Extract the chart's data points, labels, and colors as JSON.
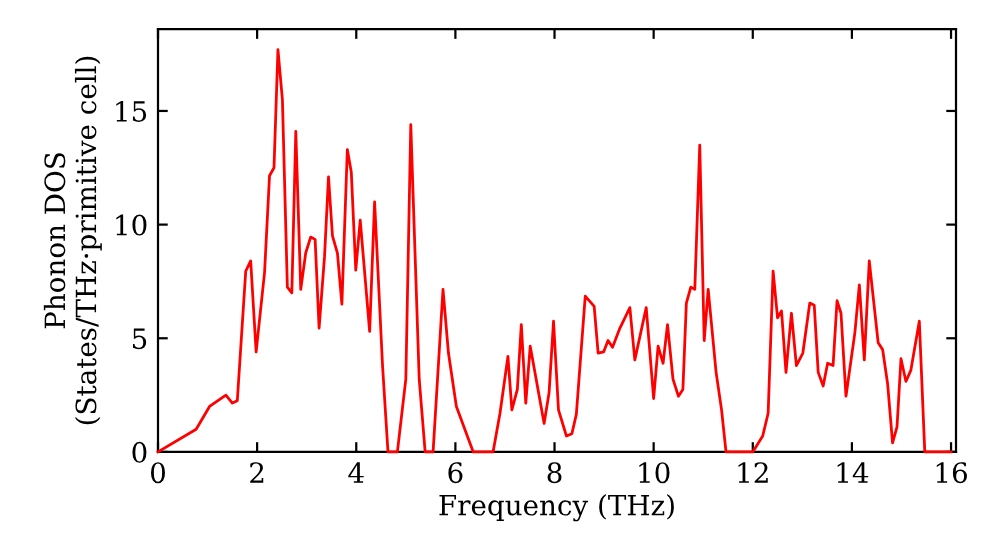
{
  "chart_data": {
    "type": "line",
    "xlabel": "Frequency (THz)",
    "ylabel": "Phonon DOS\n(States/THz·primitive cell)",
    "xlim": [
      0,
      16.1
    ],
    "ylim": [
      0,
      18.6
    ],
    "xticks": [
      0,
      2,
      4,
      6,
      8,
      10,
      12,
      14,
      16
    ],
    "yticks": [
      0,
      5,
      10,
      15
    ],
    "grid": false,
    "legend": false,
    "marker": "none",
    "line_style": "solid",
    "series": [
      {
        "color": "#ff0000",
        "x": [
          0,
          0.77,
          1.04,
          1.37,
          1.5,
          1.6,
          1.77,
          1.87,
          1.98,
          2.15,
          2.25,
          2.34,
          2.42,
          2.51,
          2.61,
          2.7,
          2.78,
          2.88,
          2.98,
          3.08,
          3.17,
          3.25,
          3.36,
          3.44,
          3.52,
          3.62,
          3.71,
          3.82,
          3.9,
          3.99,
          4.08,
          4.27,
          4.37,
          4.53,
          4.64,
          4.83,
          5.0,
          5.1,
          5.27,
          5.39,
          5.55,
          5.75,
          5.86,
          6.02,
          6.36,
          6.76,
          6.9,
          7.06,
          7.14,
          7.25,
          7.33,
          7.42,
          7.51,
          7.79,
          7.89,
          7.98,
          8.08,
          8.24,
          8.35,
          8.44,
          8.62,
          8.8,
          8.88,
          8.99,
          9.08,
          9.17,
          9.31,
          9.52,
          9.62,
          9.85,
          10.0,
          10.09,
          10.19,
          10.28,
          10.39,
          10.5,
          10.59,
          10.66,
          10.75,
          10.83,
          10.93,
          11.02,
          11.1,
          11.26,
          11.37,
          11.46,
          12.0,
          12.2,
          12.31,
          12.41,
          12.5,
          12.58,
          12.67,
          12.78,
          12.88,
          13.01,
          13.15,
          13.24,
          13.32,
          13.42,
          13.51,
          13.62,
          13.7,
          13.78,
          13.88,
          14.06,
          14.15,
          14.25,
          14.35,
          14.53,
          14.62,
          14.72,
          14.82,
          14.91,
          14.99,
          15.09,
          15.19,
          15.36,
          15.47,
          16.0
        ],
        "values": [
          0,
          1.0,
          2.0,
          2.5,
          2.15,
          2.25,
          7.95,
          8.4,
          4.4,
          7.9,
          12.15,
          12.5,
          17.7,
          15.5,
          7.25,
          7.0,
          14.1,
          7.15,
          8.75,
          9.45,
          9.35,
          5.45,
          8.6,
          12.1,
          9.5,
          8.75,
          6.5,
          13.3,
          12.3,
          8.0,
          10.2,
          5.3,
          11.0,
          3.8,
          0,
          0,
          3.2,
          14.4,
          3.2,
          0,
          0,
          7.15,
          4.35,
          2.0,
          0,
          0,
          1.7,
          4.2,
          1.85,
          2.75,
          5.6,
          2.15,
          4.65,
          1.25,
          2.6,
          5.75,
          1.85,
          0.7,
          0.8,
          1.65,
          6.85,
          6.4,
          4.35,
          4.4,
          4.9,
          4.6,
          5.4,
          6.35,
          4.05,
          6.35,
          2.35,
          4.65,
          3.9,
          5.6,
          3.2,
          2.45,
          2.75,
          6.55,
          7.25,
          7.15,
          13.5,
          4.9,
          7.15,
          3.5,
          1.85,
          0,
          0,
          0.7,
          1.7,
          7.95,
          5.9,
          6.2,
          3.5,
          6.1,
          3.8,
          4.35,
          6.55,
          6.45,
          3.5,
          2.9,
          3.9,
          3.8,
          6.65,
          6.1,
          2.45,
          5.25,
          7.35,
          4.05,
          8.4,
          4.8,
          4.5,
          3.0,
          0.4,
          1.1,
          4.1,
          3.1,
          3.6,
          5.75,
          0,
          0
        ]
      }
    ]
  }
}
